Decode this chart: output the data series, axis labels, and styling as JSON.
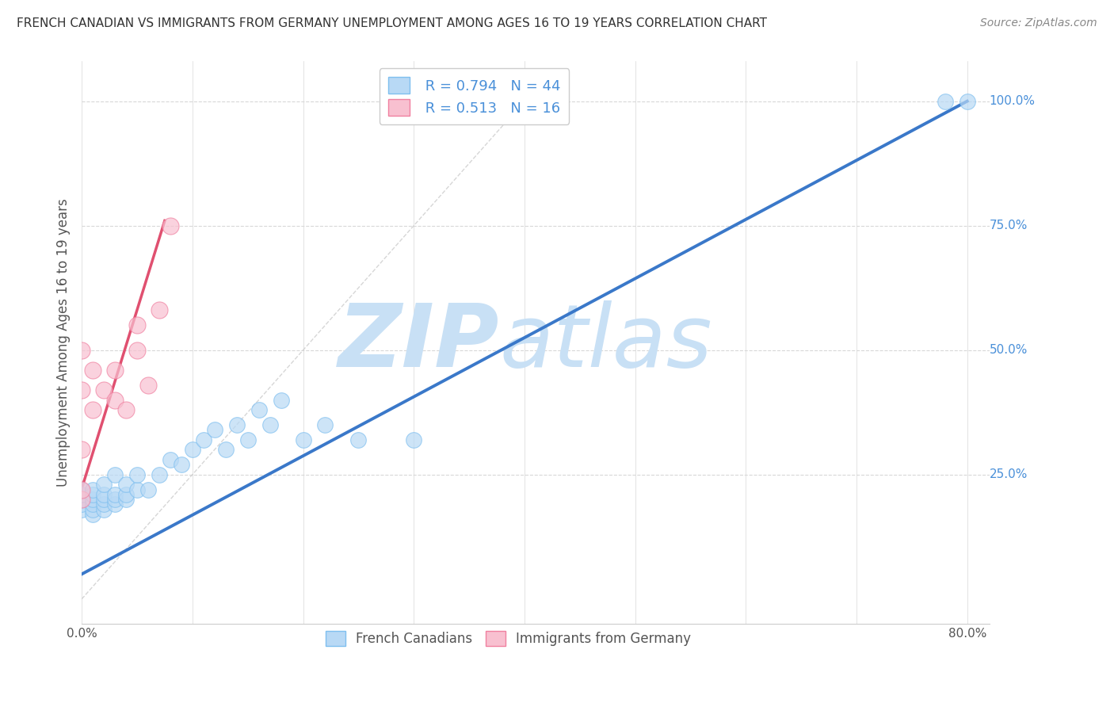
{
  "title": "FRENCH CANADIAN VS IMMIGRANTS FROM GERMANY UNEMPLOYMENT AMONG AGES 16 TO 19 YEARS CORRELATION CHART",
  "source": "Source: ZipAtlas.com",
  "ylabel": "Unemployment Among Ages 16 to 19 years",
  "xlim": [
    0.0,
    0.82
  ],
  "ylim": [
    -0.05,
    1.08
  ],
  "xticks": [
    0.0,
    0.1,
    0.2,
    0.3,
    0.4,
    0.5,
    0.6,
    0.7,
    0.8
  ],
  "xticklabels": [
    "0.0%",
    "",
    "",
    "",
    "",
    "",
    "",
    "",
    "80.0%"
  ],
  "yticks": [
    0.25,
    0.5,
    0.75,
    1.0
  ],
  "yticklabels": [
    "25.0%",
    "50.0%",
    "75.0%",
    "100.0%"
  ],
  "blue_r": 0.794,
  "blue_n": 44,
  "pink_r": 0.513,
  "pink_n": 16,
  "blue_scatter_x": [
    0.0,
    0.0,
    0.0,
    0.0,
    0.0,
    0.01,
    0.01,
    0.01,
    0.01,
    0.01,
    0.01,
    0.02,
    0.02,
    0.02,
    0.02,
    0.02,
    0.03,
    0.03,
    0.03,
    0.03,
    0.04,
    0.04,
    0.04,
    0.05,
    0.05,
    0.06,
    0.07,
    0.08,
    0.09,
    0.1,
    0.11,
    0.12,
    0.13,
    0.14,
    0.15,
    0.16,
    0.17,
    0.18,
    0.2,
    0.22,
    0.25,
    0.3,
    0.78,
    0.8
  ],
  "blue_scatter_y": [
    0.18,
    0.19,
    0.2,
    0.21,
    0.22,
    0.17,
    0.18,
    0.19,
    0.2,
    0.21,
    0.22,
    0.18,
    0.19,
    0.2,
    0.21,
    0.23,
    0.19,
    0.2,
    0.21,
    0.25,
    0.2,
    0.21,
    0.23,
    0.22,
    0.25,
    0.22,
    0.25,
    0.28,
    0.27,
    0.3,
    0.32,
    0.34,
    0.3,
    0.35,
    0.32,
    0.38,
    0.35,
    0.4,
    0.32,
    0.35,
    0.32,
    0.32,
    1.0,
    1.0
  ],
  "pink_scatter_x": [
    0.0,
    0.0,
    0.0,
    0.0,
    0.0,
    0.01,
    0.01,
    0.02,
    0.03,
    0.03,
    0.04,
    0.05,
    0.05,
    0.06,
    0.07,
    0.08
  ],
  "pink_scatter_y": [
    0.2,
    0.22,
    0.3,
    0.42,
    0.5,
    0.38,
    0.46,
    0.42,
    0.4,
    0.46,
    0.38,
    0.5,
    0.55,
    0.43,
    0.58,
    0.75
  ],
  "blue_line_x": [
    0.0,
    0.8
  ],
  "blue_line_y": [
    0.05,
    1.0
  ],
  "pink_line_x": [
    -0.01,
    0.075
  ],
  "pink_line_y": [
    0.15,
    0.76
  ],
  "ref_line_x": [
    0.0,
    0.42
  ],
  "ref_line_y": [
    0.0,
    1.05
  ],
  "blue_color": "#7fbfef",
  "blue_fill": "#b8d9f5",
  "pink_color": "#f080a0",
  "pink_fill": "#f8c0d0",
  "blue_line_color": "#3a78c9",
  "pink_line_color": "#e05070",
  "watermark_zip": "ZIP",
  "watermark_atlas": "atlas",
  "watermark_color": "#c8e0f5",
  "legend_r_color": "#4a90d9",
  "background_color": "#ffffff",
  "grid_color": "#d8d8d8",
  "ref_line_color": "#cccccc",
  "title_color": "#333333",
  "source_color": "#888888",
  "ylabel_color": "#555555",
  "xtick_color": "#555555",
  "ytick_color": "#4a90d9"
}
